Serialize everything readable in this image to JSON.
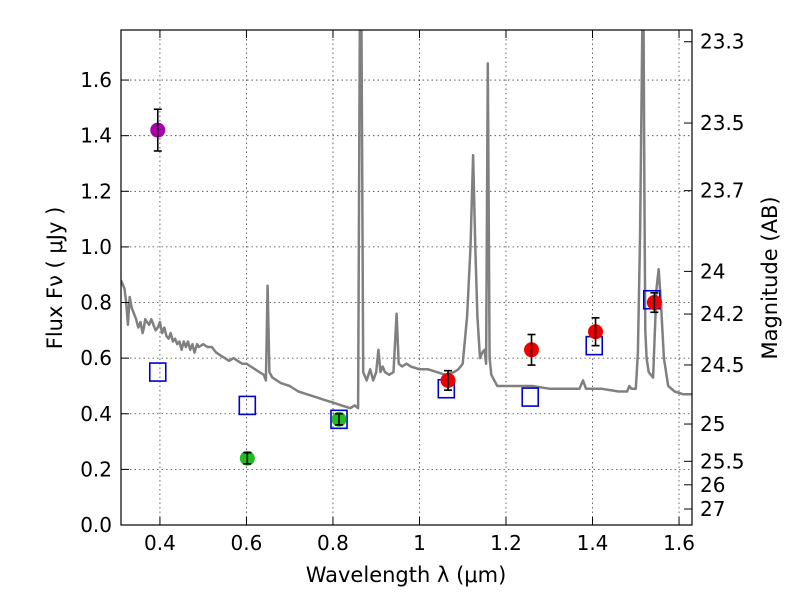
{
  "chart_data": {
    "type": "scatter",
    "title": "",
    "xlabel": "Wavelength  λ (μm)",
    "ylabel": "Flux  Fν  ( μJy )",
    "ylabel_right": "Magnitude (AB)",
    "xlim": [
      0.31,
      1.63
    ],
    "ylim": [
      0.0,
      1.78
    ],
    "grid": true,
    "x_ticks": [
      0.4,
      0.6,
      0.8,
      1.0,
      1.2,
      1.4,
      1.6
    ],
    "x_tick_labels": [
      "0.4",
      "0.6",
      "0.8",
      "1",
      "1.2",
      "1.4",
      "1.6"
    ],
    "y_ticks": [
      0.0,
      0.2,
      0.4,
      0.6,
      0.8,
      1.0,
      1.2,
      1.4,
      1.6
    ],
    "y_tick_labels": [
      "0.0",
      "0.2",
      "0.4",
      "0.6",
      "0.8",
      "1.0",
      "1.2",
      "1.4",
      "1.6"
    ],
    "mag_ticks": [
      "23.3",
      "23.5",
      "23.7",
      "24",
      "24.2",
      "24.5",
      "25",
      "25.5",
      "26",
      "27"
    ],
    "colors": {
      "spectrum": "#808080",
      "model": "#0000cc",
      "magenta": "#aa00aa",
      "green": "#22bb22",
      "red": "#ee0000",
      "errorbar": "#000000"
    },
    "model_photometry": [
      {
        "x": 0.395,
        "y": 0.55
      },
      {
        "x": 0.602,
        "y": 0.43
      },
      {
        "x": 0.814,
        "y": 0.38
      },
      {
        "x": 1.062,
        "y": 0.49
      },
      {
        "x": 1.256,
        "y": 0.46
      },
      {
        "x": 1.404,
        "y": 0.645
      },
      {
        "x": 1.537,
        "y": 0.81
      }
    ],
    "observed": [
      {
        "x": 0.395,
        "y": 1.42,
        "err": 0.075,
        "color": "magenta"
      },
      {
        "x": 0.602,
        "y": 0.24,
        "err": 0.02,
        "color": "green"
      },
      {
        "x": 0.814,
        "y": 0.38,
        "err": 0.02,
        "color": "green"
      },
      {
        "x": 1.066,
        "y": 0.52,
        "err": 0.035,
        "color": "red"
      },
      {
        "x": 1.259,
        "y": 0.63,
        "err": 0.055,
        "color": "red"
      },
      {
        "x": 1.407,
        "y": 0.695,
        "err": 0.05,
        "color": "red"
      },
      {
        "x": 1.543,
        "y": 0.8,
        "err": 0.035,
        "color": "red"
      }
    ],
    "spectrum": [
      [
        0.31,
        0.88
      ],
      [
        0.318,
        0.85
      ],
      [
        0.322,
        0.8
      ],
      [
        0.326,
        0.72
      ],
      [
        0.33,
        0.82
      ],
      [
        0.335,
        0.78
      ],
      [
        0.34,
        0.76
      ],
      [
        0.345,
        0.74
      ],
      [
        0.35,
        0.71
      ],
      [
        0.355,
        0.73
      ],
      [
        0.36,
        0.69
      ],
      [
        0.363,
        0.71
      ],
      [
        0.366,
        0.74
      ],
      [
        0.37,
        0.73
      ],
      [
        0.375,
        0.72
      ],
      [
        0.38,
        0.74
      ],
      [
        0.385,
        0.72
      ],
      [
        0.39,
        0.7
      ],
      [
        0.395,
        0.71
      ],
      [
        0.4,
        0.73
      ],
      [
        0.405,
        0.69
      ],
      [
        0.41,
        0.71
      ],
      [
        0.415,
        0.68
      ],
      [
        0.42,
        0.67
      ],
      [
        0.425,
        0.69
      ],
      [
        0.43,
        0.66
      ],
      [
        0.435,
        0.67
      ],
      [
        0.44,
        0.65
      ],
      [
        0.445,
        0.66
      ],
      [
        0.45,
        0.63
      ],
      [
        0.455,
        0.66
      ],
      [
        0.46,
        0.64
      ],
      [
        0.465,
        0.66
      ],
      [
        0.47,
        0.63
      ],
      [
        0.475,
        0.65
      ],
      [
        0.48,
        0.62
      ],
      [
        0.486,
        0.65
      ],
      [
        0.49,
        0.64
      ],
      [
        0.5,
        0.65
      ],
      [
        0.51,
        0.64
      ],
      [
        0.52,
        0.64
      ],
      [
        0.53,
        0.62
      ],
      [
        0.54,
        0.61
      ],
      [
        0.55,
        0.6
      ],
      [
        0.56,
        0.59
      ],
      [
        0.57,
        0.6
      ],
      [
        0.58,
        0.59
      ],
      [
        0.59,
        0.58
      ],
      [
        0.6,
        0.58
      ],
      [
        0.61,
        0.57
      ],
      [
        0.62,
        0.56
      ],
      [
        0.63,
        0.55
      ],
      [
        0.64,
        0.54
      ],
      [
        0.645,
        0.52
      ],
      [
        0.649,
        0.86
      ],
      [
        0.653,
        0.55
      ],
      [
        0.66,
        0.53
      ],
      [
        0.68,
        0.51
      ],
      [
        0.7,
        0.5
      ],
      [
        0.72,
        0.48
      ],
      [
        0.74,
        0.47
      ],
      [
        0.76,
        0.46
      ],
      [
        0.78,
        0.45
      ],
      [
        0.8,
        0.44
      ],
      [
        0.82,
        0.43
      ],
      [
        0.84,
        0.42
      ],
      [
        0.85,
        0.43
      ],
      [
        0.858,
        0.42
      ],
      [
        0.862,
        1.78
      ],
      [
        0.866,
        1.78
      ],
      [
        0.87,
        0.55
      ],
      [
        0.878,
        0.52
      ],
      [
        0.886,
        0.56
      ],
      [
        0.893,
        0.52
      ],
      [
        0.9,
        0.55
      ],
      [
        0.905,
        0.63
      ],
      [
        0.91,
        0.55
      ],
      [
        0.915,
        0.57
      ],
      [
        0.92,
        0.55
      ],
      [
        0.93,
        0.54
      ],
      [
        0.94,
        0.55
      ],
      [
        0.947,
        0.76
      ],
      [
        0.952,
        0.58
      ],
      [
        0.96,
        0.57
      ],
      [
        0.97,
        0.58
      ],
      [
        0.98,
        0.57
      ],
      [
        1.0,
        0.56
      ],
      [
        1.02,
        0.56
      ],
      [
        1.04,
        0.55
      ],
      [
        1.06,
        0.54
      ],
      [
        1.08,
        0.55
      ],
      [
        1.09,
        0.56
      ],
      [
        1.1,
        0.58
      ],
      [
        1.11,
        0.75
      ],
      [
        1.118,
        1.0
      ],
      [
        1.124,
        1.33
      ],
      [
        1.129,
        1.0
      ],
      [
        1.134,
        0.75
      ],
      [
        1.14,
        0.6
      ],
      [
        1.145,
        0.62
      ],
      [
        1.15,
        0.63
      ],
      [
        1.154,
        0.58
      ],
      [
        1.158,
        1.66
      ],
      [
        1.162,
        0.6
      ],
      [
        1.166,
        0.54
      ],
      [
        1.18,
        0.5
      ],
      [
        1.2,
        0.5
      ],
      [
        1.23,
        0.5
      ],
      [
        1.26,
        0.5
      ],
      [
        1.3,
        0.49
      ],
      [
        1.34,
        0.49
      ],
      [
        1.37,
        0.49
      ],
      [
        1.378,
        0.52
      ],
      [
        1.385,
        0.49
      ],
      [
        1.42,
        0.49
      ],
      [
        1.46,
        0.48
      ],
      [
        1.48,
        0.48
      ],
      [
        1.485,
        0.5
      ],
      [
        1.49,
        0.49
      ],
      [
        1.5,
        0.49
      ],
      [
        1.505,
        0.62
      ],
      [
        1.51,
        1.05
      ],
      [
        1.515,
        1.78
      ],
      [
        1.518,
        1.78
      ],
      [
        1.52,
        1.2
      ],
      [
        1.522,
        0.7
      ],
      [
        1.525,
        0.6
      ],
      [
        1.53,
        0.55
      ],
      [
        1.54,
        0.53
      ],
      [
        1.548,
        0.85
      ],
      [
        1.553,
        0.92
      ],
      [
        1.558,
        0.8
      ],
      [
        1.565,
        0.6
      ],
      [
        1.575,
        0.5
      ],
      [
        1.59,
        0.48
      ],
      [
        1.61,
        0.47
      ],
      [
        1.63,
        0.47
      ]
    ]
  }
}
